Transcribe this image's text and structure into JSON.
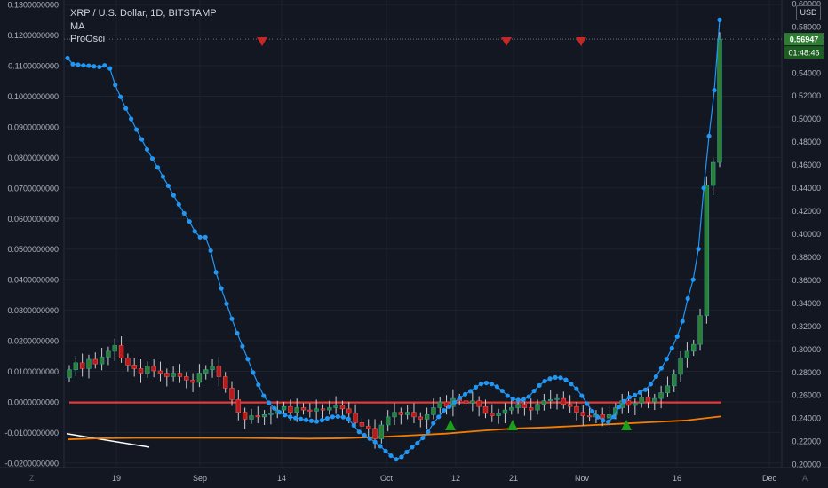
{
  "header": {
    "title": "XRP / U.S. Dollar, 1D, BITSTAMP",
    "study1": "MA",
    "study2": "ProOsci"
  },
  "currency_button": "USD",
  "price_tag": "0.56947",
  "countdown_tag": "01:48:46",
  "corner_left": "Z",
  "corner_right": "A",
  "colors": {
    "background": "#131722",
    "grid": "#1e222d",
    "up": "#26a69a",
    "down": "#ef5350",
    "up_body": "#2e7d32",
    "down_body": "#b71c1c",
    "osc_line": "#2196f3",
    "ma_line": "#f57c00",
    "level_line": "#e53935",
    "signal_down": "#c62828",
    "signal_up": "#1b9e1b"
  },
  "chart_data": {
    "type": "candlestick",
    "x_ticks": [
      "19",
      "Sep",
      "14",
      "Oct",
      "12",
      "21",
      "Nov",
      "16",
      "Dec"
    ],
    "left_axis": {
      "ticks": [
        "0.1300000000",
        "0.1200000000",
        "0.1100000000",
        "0.1000000000",
        "0.0900000000",
        "0.0800000000",
        "0.0700000000",
        "0.0600000000",
        "0.0500000000",
        "0.0400000000",
        "0.0300000000",
        "0.0200000000",
        "0.0100000000",
        "0.0000000000",
        "-0.0100000000",
        "-0.0200000000"
      ],
      "ylim": [
        -0.0215,
        0.1315
      ]
    },
    "right_axis": {
      "ticks": [
        "0.60000",
        "0.58000",
        "0.56000",
        "0.54000",
        "0.52000",
        "0.50000",
        "0.48000",
        "0.46000",
        "0.44000",
        "0.42000",
        "0.40000",
        "0.38000",
        "0.36000",
        "0.34000",
        "0.32000",
        "0.30000",
        "0.28000",
        "0.26000",
        "0.24000",
        "0.22000",
        "0.20000"
      ],
      "ylim": [
        0.197,
        0.603
      ]
    },
    "candles_close": [
      0.282,
      0.288,
      0.283,
      0.291,
      0.287,
      0.293,
      0.298,
      0.303,
      0.292,
      0.286,
      0.283,
      0.279,
      0.285,
      0.281,
      0.279,
      0.276,
      0.279,
      0.276,
      0.273,
      0.271,
      0.279,
      0.282,
      0.285,
      0.276,
      0.266,
      0.256,
      0.245,
      0.239,
      0.242,
      0.241,
      0.243,
      0.244,
      0.247,
      0.25,
      0.245,
      0.249,
      0.247,
      0.246,
      0.248,
      0.247,
      0.249,
      0.251,
      0.248,
      0.244,
      0.236,
      0.233,
      0.231,
      0.222,
      0.234,
      0.241,
      0.245,
      0.243,
      0.245,
      0.241,
      0.239,
      0.243,
      0.249,
      0.254,
      0.25,
      0.257,
      0.255,
      0.253,
      0.255,
      0.25,
      0.244,
      0.242,
      0.244,
      0.247,
      0.249,
      0.252,
      0.249,
      0.247,
      0.252,
      0.255,
      0.256,
      0.257,
      0.252,
      0.25,
      0.245,
      0.242,
      0.241,
      0.243,
      0.24,
      0.243,
      0.249,
      0.255,
      0.251,
      0.253,
      0.258,
      0.254,
      0.257,
      0.262,
      0.268,
      0.278,
      0.292,
      0.298,
      0.304,
      0.329,
      0.442,
      0.462,
      0.569
    ],
    "candles_open": 0.275,
    "osc_series": {
      "name": "ProOsci",
      "values": [
        0.1125,
        0.1105,
        0.1103,
        0.1101,
        0.11,
        0.1098,
        0.1096,
        0.1101,
        0.1091,
        0.1037,
        0.0998,
        0.096,
        0.0926,
        0.0891,
        0.0859,
        0.0826,
        0.0796,
        0.0767,
        0.0737,
        0.0707,
        0.0676,
        0.0646,
        0.0617,
        0.059,
        0.0558,
        0.0539,
        0.0539,
        0.0495,
        0.0424,
        0.0371,
        0.0321,
        0.0272,
        0.0225,
        0.0182,
        0.014,
        0.0096,
        0.0056,
        0.002,
        -0.0003,
        -0.0021,
        -0.0034,
        -0.0043,
        -0.0049,
        -0.0053,
        -0.0056,
        -0.0059,
        -0.0062,
        -0.0064,
        -0.006,
        -0.0054,
        -0.0049,
        -0.0048,
        -0.005,
        -0.0056,
        -0.0077,
        -0.0098,
        -0.0109,
        -0.012,
        -0.0131,
        -0.0145,
        -0.0161,
        -0.0176,
        -0.0188,
        -0.018,
        -0.0164,
        -0.0148,
        -0.0135,
        -0.0118,
        -0.0098,
        -0.007,
        -0.0049,
        -0.0028,
        -0.0016,
        -0.0001,
        0.0013,
        0.0025,
        0.0035,
        0.0048,
        0.0059,
        0.0062,
        0.0059,
        0.005,
        0.0036,
        0.002,
        0.001,
        0.0006,
        0.0007,
        0.0017,
        0.0036,
        0.0054,
        0.0068,
        0.0076,
        0.008,
        0.0079,
        0.0072,
        0.0059,
        0.0043,
        0.002,
        -0.0006,
        -0.0031,
        -0.005,
        -0.0061,
        -0.0065,
        -0.0049,
        -0.0017,
        0.0002,
        0.0015,
        0.0022,
        0.0031,
        0.004,
        0.0058,
        0.0083,
        0.011,
        0.014,
        0.0176,
        0.0214,
        0.0264,
        0.0338,
        0.04,
        0.05,
        0.07,
        0.087,
        0.102,
        0.125
      ]
    },
    "ma_series": {
      "name": "MA",
      "values": [
        0.2215,
        0.2225,
        0.2228,
        0.2228,
        0.2228,
        0.2228,
        0.2225,
        0.2222,
        0.2225,
        0.2235,
        0.225,
        0.2265,
        0.229,
        0.231,
        0.232,
        0.2335,
        0.235,
        0.2365,
        0.238,
        0.2415
      ]
    },
    "level_line": {
      "value": -0.0002,
      "axis": "left"
    },
    "white_line": [
      -0.0104,
      -0.0148
    ],
    "signals": [
      {
        "type": "down",
        "date": "Sep 11"
      },
      {
        "type": "down",
        "date": "Oct 20"
      },
      {
        "type": "down",
        "date": "Nov 1"
      },
      {
        "type": "up",
        "date": "Oct 11"
      },
      {
        "type": "up",
        "date": "Oct 21"
      },
      {
        "type": "up",
        "date": "Nov 8"
      }
    ]
  }
}
